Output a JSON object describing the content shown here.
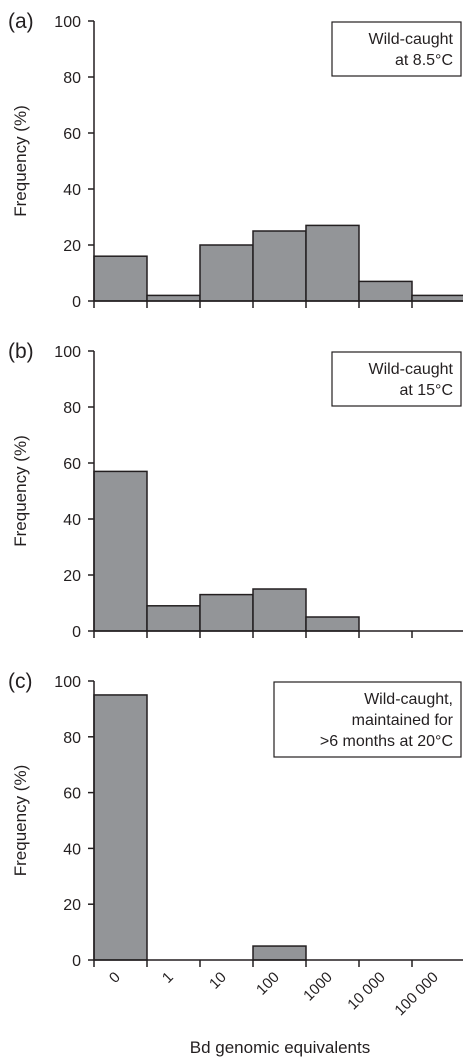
{
  "colors": {
    "bar_fill": "#939598",
    "stroke": "#231f20"
  },
  "figure": {
    "xlabel": "Bd genomic equivalents",
    "x_tick_labels": [
      "0",
      "1",
      "10",
      "100",
      "1000",
      "10 000",
      "100 000"
    ]
  },
  "chart_data": [
    {
      "type": "bar",
      "panel_label": "(a)",
      "annotation": [
        "Wild-caught",
        "at 8.5°C"
      ],
      "ylabel": "Frequency (%)",
      "ylim": [
        0,
        100
      ],
      "yticks": [
        "0",
        "20",
        "40",
        "60",
        "80",
        "100"
      ],
      "bins": [
        "0",
        "1–10",
        "10–100",
        "100–1000",
        "1000–10 000",
        "10 000–100 000",
        "100 000+"
      ],
      "values": [
        16,
        2,
        20,
        25,
        27,
        7,
        2
      ]
    },
    {
      "type": "bar",
      "panel_label": "(b)",
      "annotation": [
        "Wild-caught",
        "at 15°C"
      ],
      "ylabel": "Frequency (%)",
      "ylim": [
        0,
        100
      ],
      "yticks": [
        "0",
        "20",
        "40",
        "60",
        "80",
        "100"
      ],
      "bins": [
        "0",
        "1–10",
        "10–100",
        "100–1000",
        "1000–10 000",
        "10 000–100 000",
        "100 000+"
      ],
      "values": [
        57,
        9,
        13,
        15,
        5,
        0,
        0
      ]
    },
    {
      "type": "bar",
      "panel_label": "(c)",
      "annotation": [
        "Wild-caught,",
        "maintained for",
        ">6 months at 20°C"
      ],
      "ylabel": "Frequency (%)",
      "ylim": [
        0,
        100
      ],
      "yticks": [
        "0",
        "20",
        "40",
        "60",
        "80",
        "100"
      ],
      "bins": [
        "0",
        "1–10",
        "10–100",
        "100–1000",
        "1000–10 000",
        "10 000–100 000",
        "100 000+"
      ],
      "values": [
        95,
        0,
        0,
        5,
        0,
        0,
        0
      ]
    }
  ]
}
